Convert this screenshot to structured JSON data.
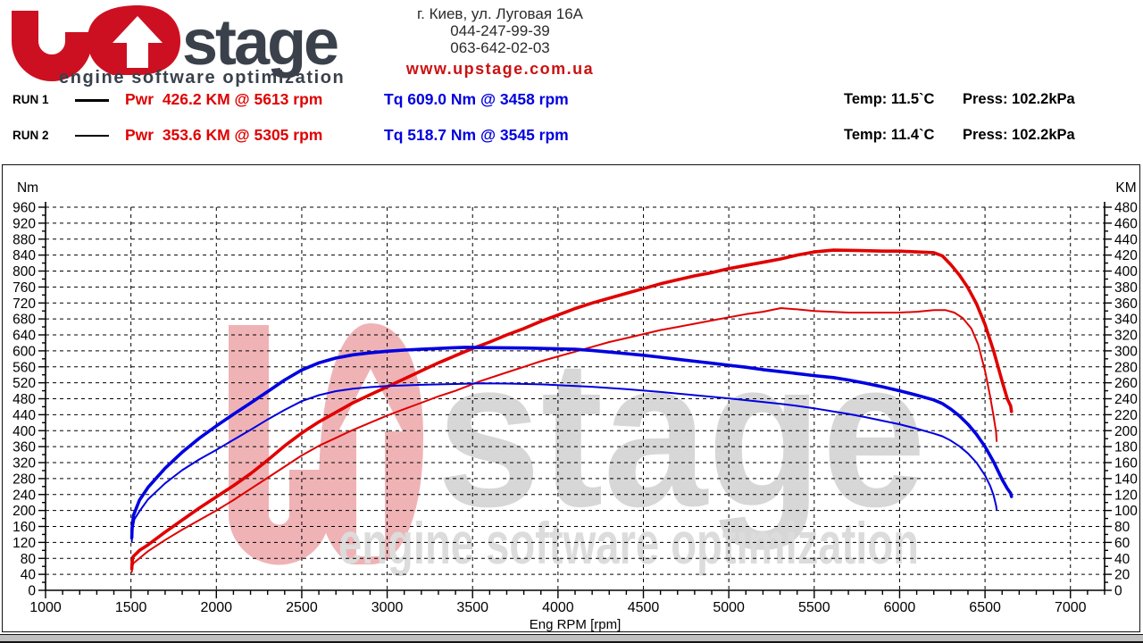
{
  "header": {
    "logo": {
      "wordmark": "stage",
      "tagline": "engine software optimization",
      "red": "#cd1021",
      "dark": "#3a414b"
    },
    "contact": {
      "address": "г. Киев, ул. Луговая 16А",
      "phone1": "044-247-99-39",
      "phone2": "063-642-02-03",
      "website": "www.upstage.com.ua",
      "website_color": "#cc1111"
    }
  },
  "runs": [
    {
      "label": "RUN 1",
      "power": "Pwr  426.2 KM @ 5613 rpm",
      "torque": "Tq 609.0 Nm @ 3458 rpm",
      "temp": "Temp: 11.5`C",
      "press": "Press: 102.2kPa"
    },
    {
      "label": "RUN 2",
      "power": "Pwr  353.6 KM @ 5305 rpm",
      "torque": "Tq 518.7 Nm @ 3545 rpm",
      "temp": "Temp: 11.4`C",
      "press": "Press: 102.2kPa"
    }
  ],
  "colors": {
    "power": "#e00000",
    "torque": "#0000e0",
    "grid": "#000000",
    "watermark_pink": "#efb3b6",
    "watermark_gray": "#d7d7d7"
  },
  "chart_data": {
    "type": "line",
    "title": "",
    "x_axis": {
      "label": "Eng RPM [rpm]",
      "min": 1000,
      "max": 7200,
      "major_step": 500,
      "minor_step": 100
    },
    "y_axis_left": {
      "label": "Nm",
      "min": 0,
      "max": 960,
      "major_step": 40,
      "minor_step": 20
    },
    "y_axis_right": {
      "label": "KM",
      "min": 0,
      "max": 480,
      "major_step": 20,
      "minor_step": 10
    },
    "grid": "dashed",
    "legend_position": "top-left",
    "series": [
      {
        "name": "RUN 1 Power",
        "unit": "KM",
        "axis": "right",
        "color": "#e00000",
        "width": 3.6,
        "peak": {
          "value": 426.2,
          "unit": "KM",
          "rpm": 5613
        },
        "points": [
          [
            1505,
            27
          ],
          [
            1507,
            36
          ],
          [
            1512,
            42
          ],
          [
            1550,
            50
          ],
          [
            1600,
            57
          ],
          [
            1700,
            73
          ],
          [
            1800,
            88
          ],
          [
            1900,
            103
          ],
          [
            2000,
            117
          ],
          [
            2100,
            131
          ],
          [
            2200,
            146
          ],
          [
            2300,
            163
          ],
          [
            2400,
            181
          ],
          [
            2500,
            197
          ],
          [
            2600,
            211
          ],
          [
            2700,
            223
          ],
          [
            2800,
            235
          ],
          [
            2900,
            245
          ],
          [
            3000,
            255
          ],
          [
            3100,
            265
          ],
          [
            3200,
            275
          ],
          [
            3300,
            285
          ],
          [
            3400,
            294
          ],
          [
            3500,
            303
          ],
          [
            3600,
            311
          ],
          [
            3700,
            320
          ],
          [
            3800,
            328
          ],
          [
            3900,
            337
          ],
          [
            4000,
            345
          ],
          [
            4100,
            353
          ],
          [
            4200,
            360
          ],
          [
            4300,
            366
          ],
          [
            4400,
            372
          ],
          [
            4500,
            378
          ],
          [
            4600,
            384
          ],
          [
            4700,
            389
          ],
          [
            4800,
            394
          ],
          [
            4900,
            398
          ],
          [
            5000,
            403
          ],
          [
            5100,
            407
          ],
          [
            5200,
            411
          ],
          [
            5300,
            415
          ],
          [
            5400,
            420
          ],
          [
            5500,
            424
          ],
          [
            5613,
            426.2
          ],
          [
            5700,
            426
          ],
          [
            5800,
            425.5
          ],
          [
            5900,
            425
          ],
          [
            6000,
            425
          ],
          [
            6100,
            424
          ],
          [
            6200,
            423
          ],
          [
            6250,
            419
          ],
          [
            6300,
            408
          ],
          [
            6350,
            395
          ],
          [
            6400,
            379
          ],
          [
            6450,
            359
          ],
          [
            6500,
            333
          ],
          [
            6550,
            300
          ],
          [
            6600,
            262
          ],
          [
            6630,
            240
          ],
          [
            6650,
            231
          ],
          [
            6655,
            224
          ]
        ]
      },
      {
        "name": "RUN 2 Power",
        "unit": "KM",
        "axis": "right",
        "color": "#e00000",
        "width": 2,
        "peak": {
          "value": 353.6,
          "unit": "KM",
          "rpm": 5305
        },
        "points": [
          [
            1505,
            23
          ],
          [
            1508,
            30
          ],
          [
            1515,
            34
          ],
          [
            1600,
            49
          ],
          [
            1700,
            63
          ],
          [
            1800,
            76
          ],
          [
            1900,
            88
          ],
          [
            2000,
            100
          ],
          [
            2100,
            113
          ],
          [
            2200,
            127
          ],
          [
            2300,
            141
          ],
          [
            2400,
            155
          ],
          [
            2500,
            169
          ],
          [
            2600,
            181
          ],
          [
            2700,
            191
          ],
          [
            2800,
            201
          ],
          [
            2900,
            210
          ],
          [
            3000,
            219
          ],
          [
            3100,
            227
          ],
          [
            3200,
            235
          ],
          [
            3300,
            243
          ],
          [
            3400,
            250
          ],
          [
            3545,
            262
          ],
          [
            3700,
            273
          ],
          [
            3800,
            280
          ],
          [
            3900,
            287
          ],
          [
            4000,
            293
          ],
          [
            4100,
            299
          ],
          [
            4200,
            305
          ],
          [
            4300,
            311
          ],
          [
            4400,
            316
          ],
          [
            4500,
            321
          ],
          [
            4600,
            326
          ],
          [
            4700,
            330
          ],
          [
            4800,
            334
          ],
          [
            4900,
            338
          ],
          [
            5000,
            342
          ],
          [
            5100,
            346
          ],
          [
            5200,
            349
          ],
          [
            5305,
            353.6
          ],
          [
            5400,
            352
          ],
          [
            5500,
            350
          ],
          [
            5600,
            349
          ],
          [
            5700,
            348
          ],
          [
            5800,
            348
          ],
          [
            5900,
            348
          ],
          [
            6000,
            348
          ],
          [
            6100,
            349
          ],
          [
            6200,
            351
          ],
          [
            6270,
            351
          ],
          [
            6320,
            348
          ],
          [
            6370,
            341
          ],
          [
            6420,
            328
          ],
          [
            6460,
            308
          ],
          [
            6500,
            275
          ],
          [
            6530,
            243
          ],
          [
            6550,
            218
          ],
          [
            6565,
            198
          ],
          [
            6568,
            187
          ]
        ]
      },
      {
        "name": "RUN 1 Torque",
        "unit": "Nm",
        "axis": "left",
        "color": "#0000e0",
        "width": 3.6,
        "peak": {
          "value": 609.0,
          "unit": "Nm",
          "rpm": 3458
        },
        "points": [
          [
            1505,
            132
          ],
          [
            1507,
            158
          ],
          [
            1515,
            188
          ],
          [
            1550,
            226
          ],
          [
            1600,
            258
          ],
          [
            1700,
            306
          ],
          [
            1800,
            346
          ],
          [
            1900,
            381
          ],
          [
            2000,
            412
          ],
          [
            2100,
            441
          ],
          [
            2200,
            469
          ],
          [
            2300,
            498
          ],
          [
            2400,
            527
          ],
          [
            2500,
            552
          ],
          [
            2600,
            570
          ],
          [
            2700,
            582
          ],
          [
            2800,
            590
          ],
          [
            2900,
            595
          ],
          [
            3000,
            599
          ],
          [
            3100,
            602
          ],
          [
            3200,
            604
          ],
          [
            3300,
            606
          ],
          [
            3400,
            608
          ],
          [
            3458,
            609
          ],
          [
            3600,
            608
          ],
          [
            3800,
            607
          ],
          [
            4000,
            605
          ],
          [
            4100,
            604
          ],
          [
            4200,
            601
          ],
          [
            4300,
            597
          ],
          [
            4400,
            593
          ],
          [
            4500,
            589
          ],
          [
            4600,
            584
          ],
          [
            4700,
            579
          ],
          [
            4800,
            574
          ],
          [
            4900,
            569
          ],
          [
            5000,
            564
          ],
          [
            5100,
            559
          ],
          [
            5200,
            553
          ],
          [
            5300,
            548
          ],
          [
            5400,
            543
          ],
          [
            5500,
            538
          ],
          [
            5613,
            533
          ],
          [
            5700,
            527
          ],
          [
            5800,
            519
          ],
          [
            5900,
            510
          ],
          [
            6000,
            500
          ],
          [
            6100,
            489
          ],
          [
            6200,
            477
          ],
          [
            6250,
            468
          ],
          [
            6300,
            454
          ],
          [
            6350,
            437
          ],
          [
            6400,
            416
          ],
          [
            6450,
            391
          ],
          [
            6500,
            360
          ],
          [
            6550,
            322
          ],
          [
            6600,
            278
          ],
          [
            6630,
            255
          ],
          [
            6650,
            243
          ],
          [
            6655,
            235
          ]
        ]
      },
      {
        "name": "RUN 2 Torque",
        "unit": "Nm",
        "axis": "left",
        "color": "#0000e0",
        "width": 2,
        "peak": {
          "value": 518.7,
          "unit": "Nm",
          "rpm": 3545
        },
        "points": [
          [
            1505,
            122
          ],
          [
            1508,
            150
          ],
          [
            1520,
            178
          ],
          [
            1550,
            198
          ],
          [
            1600,
            228
          ],
          [
            1700,
            268
          ],
          [
            1800,
            301
          ],
          [
            1900,
            328
          ],
          [
            2000,
            352
          ],
          [
            2100,
            377
          ],
          [
            2200,
            402
          ],
          [
            2300,
            428
          ],
          [
            2400,
            452
          ],
          [
            2500,
            474
          ],
          [
            2600,
            489
          ],
          [
            2700,
            499
          ],
          [
            2800,
            505
          ],
          [
            2900,
            509
          ],
          [
            3000,
            512
          ],
          [
            3200,
            515
          ],
          [
            3400,
            517
          ],
          [
            3545,
            518.7
          ],
          [
            3700,
            518
          ],
          [
            3900,
            516
          ],
          [
            4000,
            514
          ],
          [
            4200,
            510
          ],
          [
            4400,
            504
          ],
          [
            4600,
            497
          ],
          [
            4800,
            489
          ],
          [
            5000,
            481
          ],
          [
            5200,
            472
          ],
          [
            5305,
            467
          ],
          [
            5400,
            462
          ],
          [
            5500,
            456
          ],
          [
            5600,
            449
          ],
          [
            5700,
            442
          ],
          [
            5800,
            434
          ],
          [
            5900,
            425
          ],
          [
            6000,
            416
          ],
          [
            6100,
            405
          ],
          [
            6200,
            393
          ],
          [
            6250,
            386
          ],
          [
            6300,
            375
          ],
          [
            6350,
            361
          ],
          [
            6400,
            343
          ],
          [
            6450,
            320
          ],
          [
            6500,
            288
          ],
          [
            6530,
            262
          ],
          [
            6550,
            238
          ],
          [
            6565,
            212
          ],
          [
            6568,
            202
          ]
        ]
      }
    ]
  }
}
